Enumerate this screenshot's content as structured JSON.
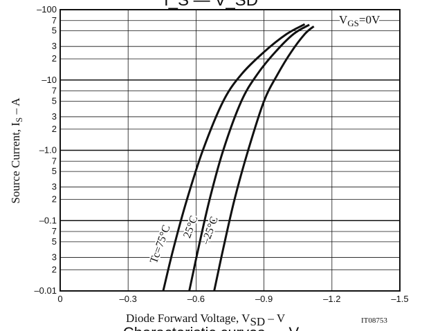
{
  "chart_data": {
    "type": "line",
    "title_fragment": "I_S — V_SD",
    "footer_fragment": "Characteristic curves — V",
    "condition_label": {
      "main": "V",
      "sub": "GS",
      "rest": "=0V"
    },
    "xlabel": {
      "main": "Diode Forward Voltage, V",
      "sub": "SD",
      "rest": " – V"
    },
    "ylabel": {
      "main": "Source Current, I",
      "sub": "S",
      "rest": " – A"
    },
    "figure_id": "IT08753",
    "x_axis": {
      "range": [
        0,
        -1.5
      ],
      "scale": "linear",
      "tick_labels": [
        "0",
        "–0.3",
        "–0.6",
        "–0.9",
        "–1.2",
        "–1.5"
      ],
      "tick_values": [
        0,
        -0.3,
        -0.6,
        -0.9,
        -1.2,
        -1.5
      ]
    },
    "y_axis": {
      "range": [
        -0.01,
        -100
      ],
      "scale": "log",
      "major_labels": [
        "–0.01",
        "–0.1",
        "–1.0",
        "–10",
        "–100"
      ],
      "major_values": [
        -0.01,
        -0.1,
        -1.0,
        -10,
        -100
      ],
      "minor_labels": [
        "2",
        "3",
        "5",
        "7"
      ],
      "minor_multipliers": [
        2,
        3,
        5,
        7
      ]
    },
    "grid": true,
    "series": [
      {
        "name": "Tc=75°C",
        "x": [
          -0.455,
          -0.5,
          -0.56,
          -0.63,
          -0.72,
          -0.8,
          -0.9,
          -1.0,
          -1.08
        ],
        "y": [
          -0.01,
          -0.04,
          -0.2,
          -1.0,
          -5.0,
          -12,
          -25,
          -45,
          -62
        ]
      },
      {
        "name": "25°C",
        "x": [
          -0.57,
          -0.61,
          -0.66,
          -0.72,
          -0.8,
          -0.87,
          -0.95,
          -1.03,
          -1.1
        ],
        "y": [
          -0.01,
          -0.04,
          -0.2,
          -1.0,
          -5.0,
          -12,
          -25,
          -45,
          -61
        ]
      },
      {
        "name": "–25°C",
        "x": [
          -0.68,
          -0.72,
          -0.77,
          -0.83,
          -0.9,
          -0.96,
          -1.02,
          -1.08,
          -1.12
        ],
        "y": [
          -0.01,
          -0.04,
          -0.2,
          -1.0,
          -5.0,
          -12,
          -25,
          -45,
          -58
        ]
      }
    ]
  }
}
